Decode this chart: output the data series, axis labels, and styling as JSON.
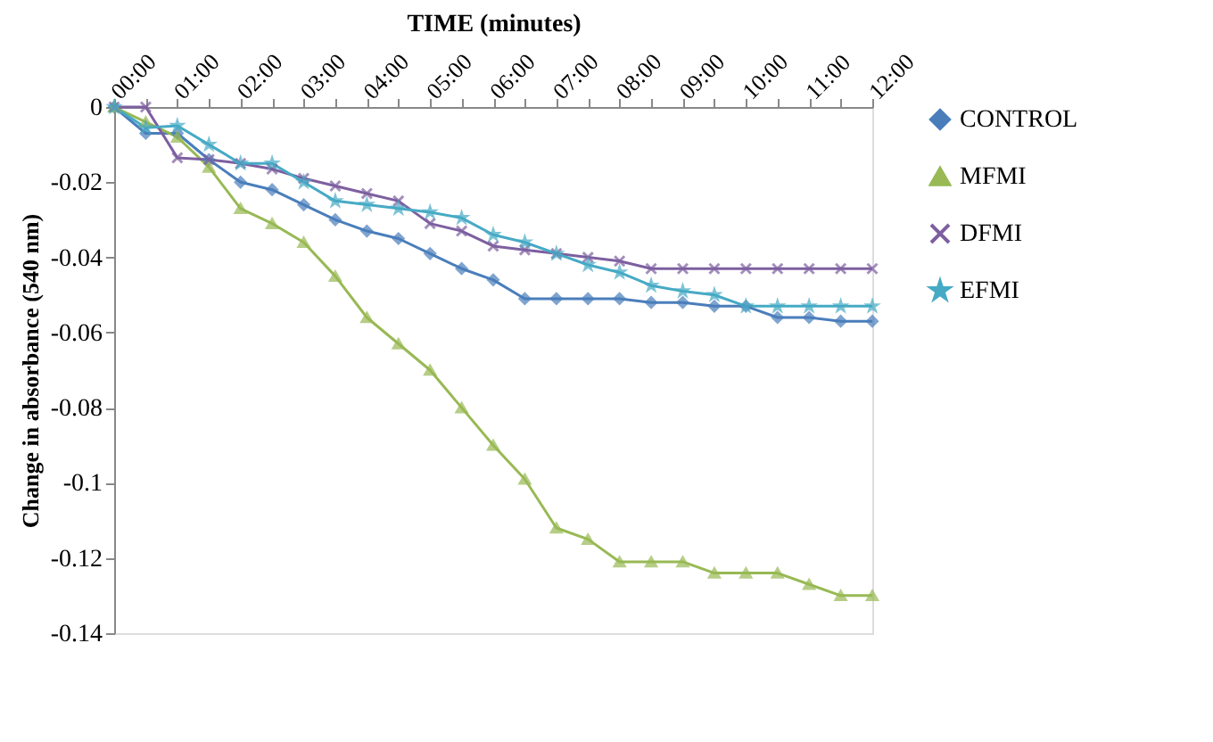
{
  "chart_data": {
    "type": "line",
    "xlabel": "TIME (minutes)",
    "ylabel": "Change in absorbance (540 nm)",
    "x": [
      0,
      0.5,
      1,
      1.5,
      2,
      2.5,
      3,
      3.5,
      4,
      4.5,
      5,
      5.5,
      6,
      6.5,
      7,
      7.5,
      8,
      8.5,
      9,
      9.5,
      10,
      10.5,
      11,
      11.5,
      12
    ],
    "xlim": [
      0,
      12
    ],
    "xticks": [
      {
        "value": 0,
        "label": "00:00"
      },
      {
        "value": 0.5,
        "label": null
      },
      {
        "value": 1,
        "label": "01:00"
      },
      {
        "value": 1.5,
        "label": null
      },
      {
        "value": 2,
        "label": "02:00"
      },
      {
        "value": 2.5,
        "label": null
      },
      {
        "value": 3,
        "label": "03:00"
      },
      {
        "value": 3.5,
        "label": null
      },
      {
        "value": 4,
        "label": "04:00"
      },
      {
        "value": 4.5,
        "label": null
      },
      {
        "value": 5,
        "label": "05:00"
      },
      {
        "value": 5.5,
        "label": null
      },
      {
        "value": 6,
        "label": "06:00"
      },
      {
        "value": 6.5,
        "label": null
      },
      {
        "value": 7,
        "label": "07:00"
      },
      {
        "value": 7.5,
        "label": null
      },
      {
        "value": 8,
        "label": "08:00"
      },
      {
        "value": 8.5,
        "label": null
      },
      {
        "value": 9,
        "label": "09:00"
      },
      {
        "value": 9.5,
        "label": null
      },
      {
        "value": 10,
        "label": "10:00"
      },
      {
        "value": 10.5,
        "label": null
      },
      {
        "value": 11,
        "label": "11:00"
      },
      {
        "value": 11.5,
        "label": null
      },
      {
        "value": 12,
        "label": "12:00"
      }
    ],
    "ylim": [
      -0.14,
      0
    ],
    "yticks": [
      0,
      -0.02,
      -0.04,
      -0.06,
      -0.08,
      -0.1,
      -0.12,
      -0.14
    ],
    "grid": false,
    "legend": "right",
    "series": [
      {
        "name": "CONTROL",
        "color": "#4a7ebb",
        "marker": "diamond",
        "values": [
          0,
          -0.007,
          -0.007,
          -0.014,
          -0.02,
          -0.022,
          -0.026,
          -0.03,
          -0.033,
          -0.035,
          -0.039,
          -0.043,
          -0.046,
          -0.051,
          -0.051,
          -0.051,
          -0.051,
          -0.052,
          -0.052,
          -0.053,
          -0.053,
          -0.056,
          -0.056,
          -0.057,
          -0.057
        ]
      },
      {
        "name": "MFMI",
        "color": "#98b954",
        "marker": "triangle",
        "values": [
          0,
          -0.004,
          -0.008,
          -0.016,
          -0.027,
          -0.031,
          -0.036,
          -0.045,
          -0.056,
          -0.063,
          -0.07,
          -0.08,
          -0.09,
          -0.099,
          -0.112,
          -0.115,
          -0.121,
          -0.121,
          -0.121,
          -0.124,
          -0.124,
          -0.124,
          -0.127,
          -0.13,
          -0.13
        ]
      },
      {
        "name": "DFMI",
        "color": "#7d5fa0",
        "marker": "cross",
        "values": [
          0,
          0,
          -0.0135,
          -0.014,
          -0.015,
          -0.0165,
          -0.019,
          -0.021,
          -0.023,
          -0.025,
          -0.031,
          -0.033,
          -0.037,
          -0.038,
          -0.039,
          -0.04,
          -0.041,
          -0.043,
          -0.043,
          -0.043,
          -0.043,
          -0.043,
          -0.043,
          -0.043,
          -0.043
        ]
      },
      {
        "name": "EFMI",
        "color": "#46aac5",
        "marker": "star",
        "values": [
          0,
          -0.0055,
          -0.005,
          -0.01,
          -0.015,
          -0.015,
          -0.02,
          -0.025,
          -0.026,
          -0.027,
          -0.028,
          -0.0295,
          -0.034,
          -0.036,
          -0.039,
          -0.042,
          -0.044,
          -0.0475,
          -0.049,
          -0.05,
          -0.053,
          -0.053,
          -0.053,
          -0.053,
          -0.053
        ]
      }
    ]
  }
}
